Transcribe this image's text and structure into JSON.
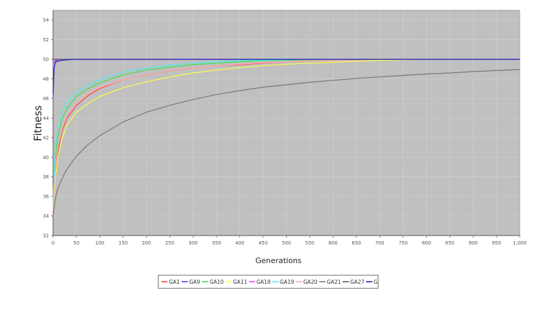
{
  "chart_data": {
    "type": "line",
    "title": "",
    "xlabel": "Generations",
    "ylabel": "Fitness",
    "xlim": [
      0,
      1000
    ],
    "ylim": [
      32,
      55
    ],
    "x_ticks": [
      0,
      50,
      100,
      150,
      200,
      250,
      300,
      350,
      400,
      450,
      500,
      550,
      600,
      650,
      700,
      750,
      800,
      850,
      900,
      950,
      1000
    ],
    "x_tick_labels": [
      "0",
      "50",
      "100",
      "150",
      "200",
      "250",
      "300",
      "350",
      "400",
      "450",
      "500",
      "550",
      "600",
      "650",
      "700",
      "750",
      "800",
      "850",
      "900",
      "950",
      "1,000"
    ],
    "y_ticks": [
      32,
      34,
      36,
      38,
      40,
      42,
      44,
      46,
      48,
      50,
      52,
      54
    ],
    "y_tick_labels": [
      "32",
      "34",
      "36",
      "38",
      "40",
      "42",
      "44",
      "46",
      "48",
      "50",
      "52",
      "54"
    ],
    "grid": true,
    "plot_background": "#c0c0c0",
    "legend_position": "bottom-center",
    "x": [
      0,
      2,
      5,
      10,
      20,
      30,
      50,
      75,
      100,
      150,
      200,
      250,
      300,
      350,
      400,
      450,
      500,
      550,
      600,
      650,
      700,
      750,
      800,
      850,
      900,
      950,
      1000
    ],
    "series": [
      {
        "name": "GA1",
        "color": "#ff4444",
        "values": [
          34.0,
          36.0,
          38.5,
          40.5,
          42.8,
          44.0,
          45.3,
          46.3,
          47.0,
          47.9,
          48.4,
          48.8,
          49.1,
          49.3,
          49.45,
          49.6,
          49.75,
          49.85,
          49.9,
          49.95,
          50,
          50,
          50,
          50,
          50,
          50,
          50
        ]
      },
      {
        "name": "GA9",
        "color": "#4444ff",
        "values": [
          46.0,
          49.0,
          49.8,
          49.95,
          50,
          50,
          50,
          50,
          50,
          50,
          50,
          50,
          50,
          50,
          50,
          50,
          50,
          50,
          50,
          50,
          50,
          50,
          50,
          50,
          50,
          50,
          50
        ]
      },
      {
        "name": "GA10",
        "color": "#44dd44",
        "values": [
          35.0,
          37.5,
          40.0,
          42.0,
          44.0,
          45.0,
          46.2,
          47.0,
          47.6,
          48.4,
          48.9,
          49.2,
          49.45,
          49.6,
          49.75,
          49.85,
          49.9,
          49.95,
          50,
          50,
          50,
          50,
          50,
          50,
          50,
          50,
          50
        ]
      },
      {
        "name": "GA11",
        "color": "#ffff44",
        "values": [
          34.5,
          36.0,
          38.0,
          40.0,
          42.0,
          43.3,
          44.6,
          45.5,
          46.2,
          47.1,
          47.7,
          48.2,
          48.6,
          48.9,
          49.15,
          49.35,
          49.5,
          49.6,
          49.7,
          49.8,
          49.9,
          49.95,
          50,
          50,
          50,
          50,
          50
        ]
      },
      {
        "name": "GA18",
        "color": "#ff44ff",
        "values": [
          49.3,
          49.8,
          49.95,
          50,
          50,
          50,
          50,
          50,
          50,
          50,
          50,
          50,
          50,
          50,
          50,
          50,
          50,
          50,
          50,
          50,
          50,
          50,
          50,
          50,
          50,
          50,
          50
        ]
      },
      {
        "name": "GA19",
        "color": "#44eeee",
        "values": [
          35.5,
          38.0,
          40.8,
          42.8,
          44.7,
          45.6,
          46.6,
          47.4,
          47.9,
          48.7,
          49.1,
          49.4,
          49.6,
          49.75,
          49.85,
          49.9,
          49.95,
          50,
          50,
          50,
          50,
          50,
          50,
          50,
          50,
          50,
          50
        ]
      },
      {
        "name": "GA20",
        "color": "#ffaaaa",
        "values": [
          34.5,
          36.5,
          39.0,
          41.0,
          43.0,
          44.2,
          45.5,
          46.5,
          47.1,
          47.9,
          48.4,
          48.8,
          49.1,
          49.3,
          49.5,
          49.65,
          49.75,
          49.85,
          49.9,
          49.95,
          50,
          50,
          50,
          50,
          50,
          50,
          50
        ]
      },
      {
        "name": "GA21",
        "color": "#777777",
        "values": [
          34.0,
          34.8,
          35.8,
          36.8,
          37.9,
          38.8,
          40.1,
          41.3,
          42.2,
          43.6,
          44.6,
          45.3,
          45.9,
          46.4,
          46.8,
          47.15,
          47.4,
          47.65,
          47.85,
          48.05,
          48.2,
          48.35,
          48.5,
          48.6,
          48.75,
          48.85,
          48.95
        ]
      },
      {
        "name": "GA27",
        "color": "#555555",
        "values": [
          50,
          50,
          50,
          50,
          50,
          50,
          50,
          50,
          50,
          50,
          50,
          50,
          50,
          50,
          50,
          50,
          50,
          50,
          50,
          50,
          50,
          50,
          50,
          50,
          50,
          50,
          50
        ]
      },
      {
        "name": "GA Weibull",
        "color": "#2222bb",
        "values": [
          46.5,
          49.2,
          49.7,
          49.8,
          49.9,
          49.95,
          50,
          50,
          50,
          50,
          50,
          50,
          50,
          50,
          50,
          50,
          50,
          50,
          50,
          50,
          50,
          50,
          50,
          50,
          50,
          50,
          50
        ]
      }
    ]
  }
}
